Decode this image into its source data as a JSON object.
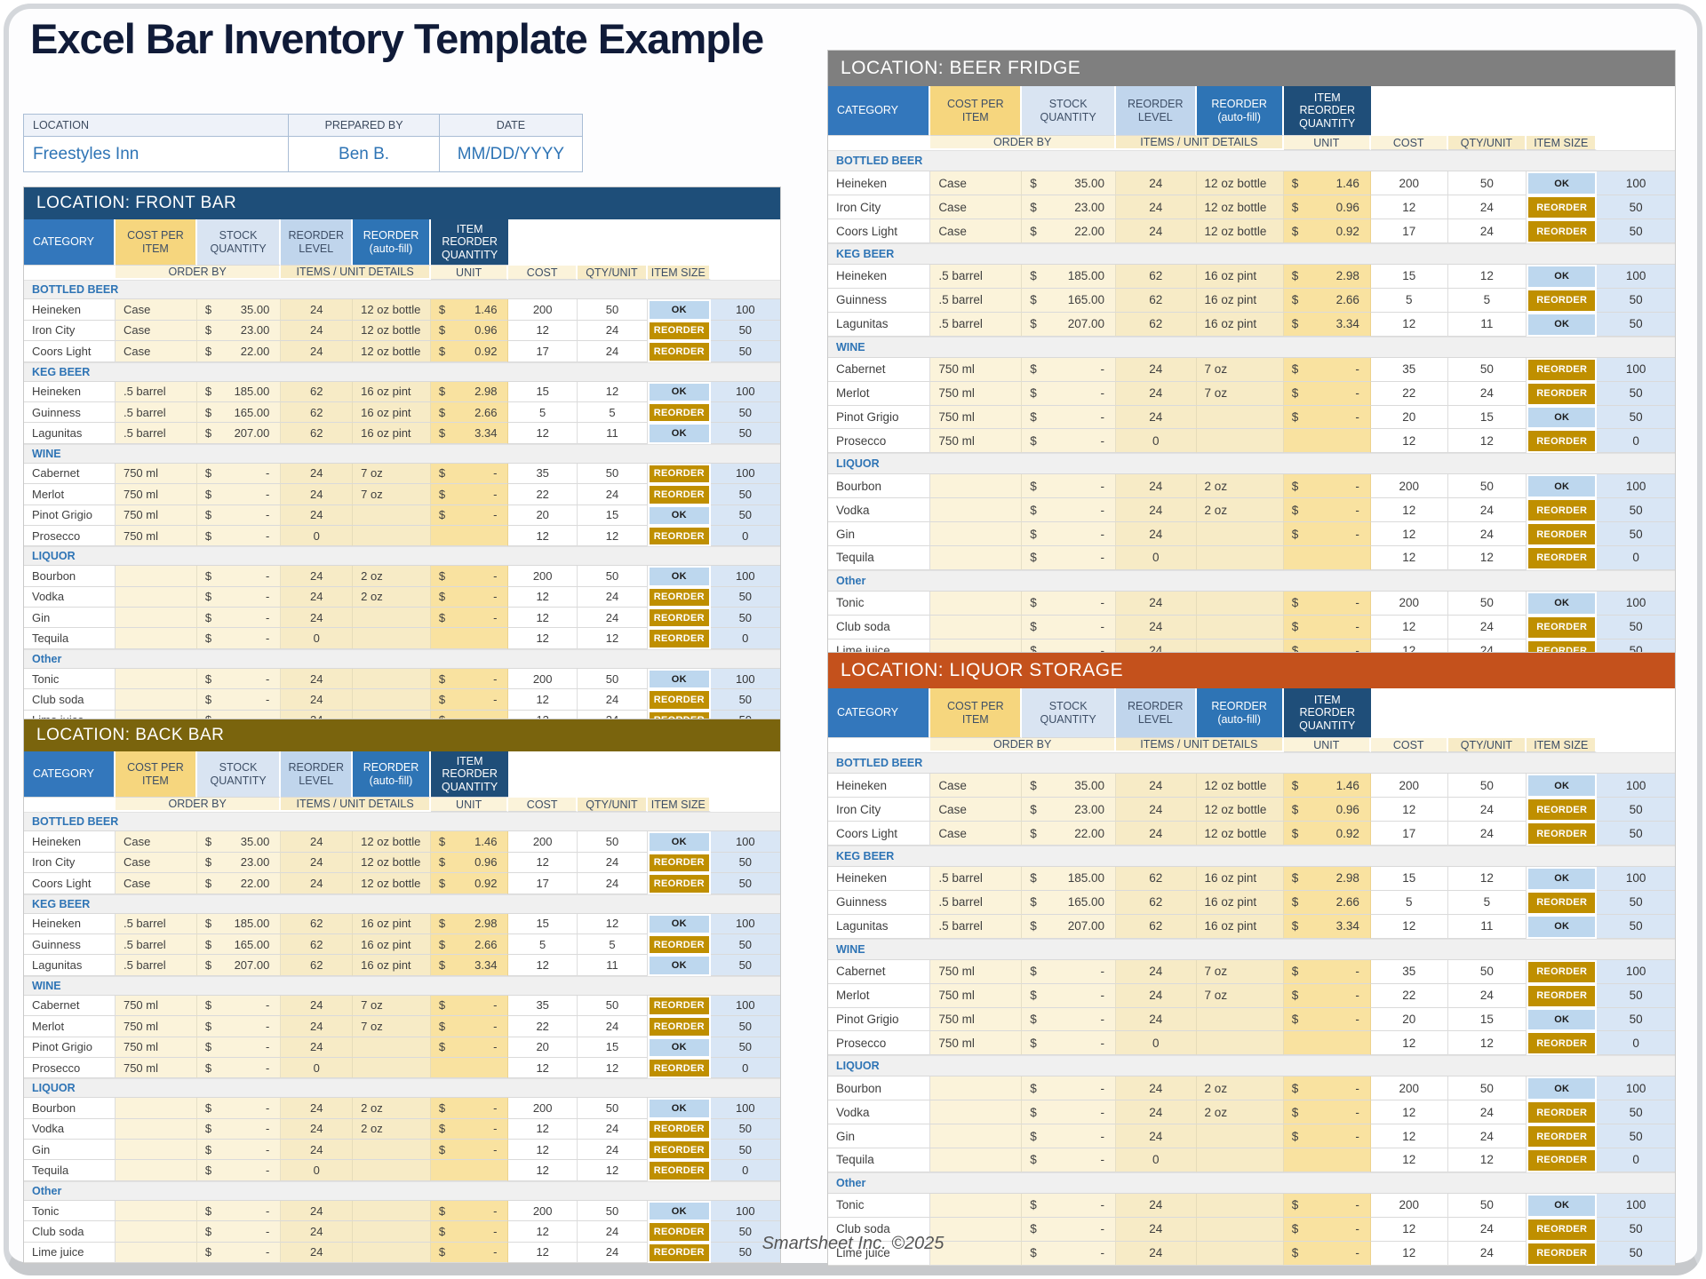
{
  "page": {
    "title": "Excel Bar Inventory Template Example",
    "footer": "Smartsheet Inc. ©2025"
  },
  "info": {
    "headers": [
      "LOCATION",
      "PREPARED BY",
      "DATE"
    ],
    "values": [
      "Freestyles Inn",
      "Ben B.",
      "MM/DD/YYYY"
    ]
  },
  "column_headers": {
    "category": "CATEGORY",
    "order_by": "ORDER BY",
    "unit": "UNIT",
    "cost": "COST",
    "items_unit_details": "ITEMS / UNIT DETAILS",
    "qty_unit": "QTY/UNIT",
    "item_size": "ITEM SIZE",
    "cost_per_item": "COST PER ITEM",
    "stock_quantity": "STOCK QUANTITY",
    "reorder_level": "REORDER LEVEL",
    "reorder_autofill": "REORDER",
    "reorder_autofill_sub": "(auto-fill)",
    "item_reorder_quantity": "ITEM REORDER QUANTITY"
  },
  "badges": {
    "ok_label": "OK",
    "reorder_label": "REORDER"
  },
  "colors": {
    "ok_bg": "#bdd7ee",
    "reorder_bg": "#bf8f00",
    "category_header": "#3377bc",
    "reorder_header": "#2e74b5",
    "irq_header": "#1f4e79",
    "front_bar_band": "#1e4e79",
    "back_bar_band": "#7a640d",
    "beer_fridge_band": "#7f7f7f",
    "liquor_storage_band": "#c4511c"
  },
  "locations": [
    {
      "slug": "front-bar",
      "title": "LOCATION: FRONT BAR",
      "color": "#1e4e79"
    },
    {
      "slug": "back-bar",
      "title": "LOCATION: BACK BAR",
      "color": "#7a640d"
    },
    {
      "slug": "beer-fridge",
      "title": "LOCATION: BEER FRIDGE",
      "color": "#7f7f7f"
    },
    {
      "slug": "liquor-storage",
      "title": "LOCATION: LIQUOR STORAGE",
      "color": "#c4511c"
    }
  ],
  "sections": [
    {
      "name": "BOTTLED BEER",
      "rows": [
        [
          "Heineken",
          "Case",
          "35.00",
          "24",
          "12 oz bottle",
          "1.46",
          "200",
          "50",
          "OK",
          "100"
        ],
        [
          "Iron City",
          "Case",
          "23.00",
          "24",
          "12 oz bottle",
          "0.96",
          "12",
          "24",
          "REORDER",
          "50"
        ],
        [
          "Coors Light",
          "Case",
          "22.00",
          "24",
          "12 oz bottle",
          "0.92",
          "17",
          "24",
          "REORDER",
          "50"
        ]
      ]
    },
    {
      "name": "KEG BEER",
      "rows": [
        [
          "Heineken",
          ".5 barrel",
          "185.00",
          "62",
          "16 oz pint",
          "2.98",
          "15",
          "12",
          "OK",
          "100"
        ],
        [
          "Guinness",
          ".5 barrel",
          "165.00",
          "62",
          "16 oz pint",
          "2.66",
          "5",
          "5",
          "REORDER",
          "50"
        ],
        [
          "Lagunitas",
          ".5 barrel",
          "207.00",
          "62",
          "16 oz pint",
          "3.34",
          "12",
          "11",
          "OK",
          "50"
        ]
      ]
    },
    {
      "name": "WINE",
      "rows": [
        [
          "Cabernet",
          "750 ml",
          "-",
          "24",
          "7 oz",
          "-",
          "35",
          "50",
          "REORDER",
          "100"
        ],
        [
          "Merlot",
          "750 ml",
          "-",
          "24",
          "7 oz",
          "-",
          "22",
          "24",
          "REORDER",
          "50"
        ],
        [
          "Pinot Grigio",
          "750 ml",
          "-",
          "24",
          "",
          "-",
          "20",
          "15",
          "OK",
          "50"
        ],
        [
          "Prosecco",
          "750 ml",
          "-",
          "0",
          "",
          "",
          "12",
          "12",
          "REORDER",
          "0"
        ]
      ]
    },
    {
      "name": "LIQUOR",
      "rows": [
        [
          "Bourbon",
          "",
          "-",
          "24",
          "2 oz",
          "-",
          "200",
          "50",
          "OK",
          "100"
        ],
        [
          "Vodka",
          "",
          "-",
          "24",
          "2 oz",
          "-",
          "12",
          "24",
          "REORDER",
          "50"
        ],
        [
          "Gin",
          "",
          "-",
          "24",
          "",
          "-",
          "12",
          "24",
          "REORDER",
          "50"
        ],
        [
          "Tequila",
          "",
          "-",
          "0",
          "",
          "",
          "12",
          "12",
          "REORDER",
          "0"
        ]
      ]
    },
    {
      "name": "Other",
      "rows": [
        [
          "Tonic",
          "",
          "-",
          "24",
          "",
          "-",
          "200",
          "50",
          "OK",
          "100"
        ],
        [
          "Club soda",
          "",
          "-",
          "24",
          "",
          "-",
          "12",
          "24",
          "REORDER",
          "50"
        ],
        [
          "Lime juice",
          "",
          "-",
          "24",
          "",
          "-",
          "12",
          "24",
          "REORDER",
          "50"
        ]
      ]
    }
  ]
}
